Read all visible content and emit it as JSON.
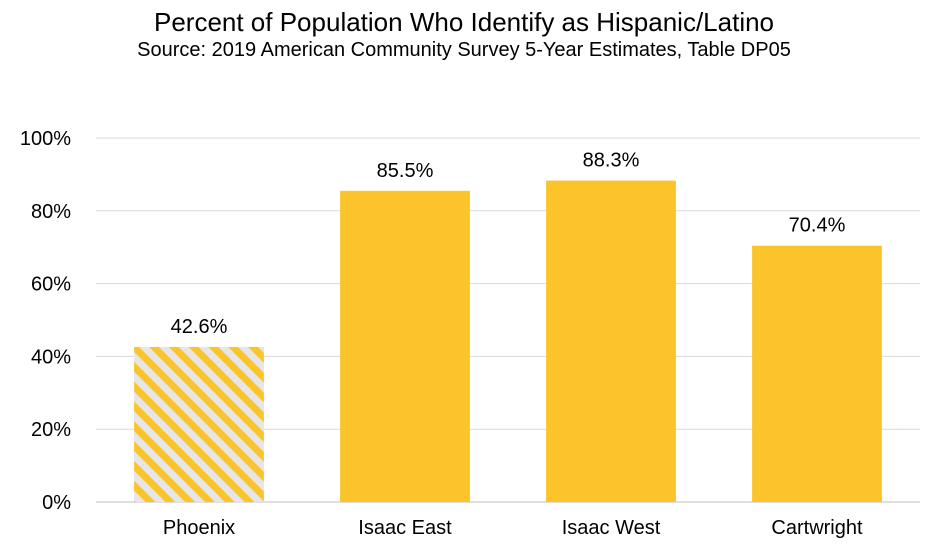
{
  "chart_data": {
    "type": "bar",
    "title": "Percent of Population Who Identify as Hispanic/Latino",
    "subtitle": "Source: 2019 American Community Survey 5-Year Estimates, Table DP05",
    "categories": [
      "Phoenix",
      "Isaac East",
      "Isaac West",
      "Cartwright"
    ],
    "values": [
      42.6,
      85.5,
      88.3,
      70.4
    ],
    "data_labels": [
      "42.6%",
      "85.5%",
      "88.3%",
      "70.4%"
    ],
    "ylim": [
      0,
      100
    ],
    "yticks": [
      0,
      20,
      40,
      60,
      80,
      100
    ],
    "ytick_labels": [
      "0%",
      "20%",
      "40%",
      "60%",
      "80%",
      "100%"
    ],
    "xlabel": "",
    "ylabel": "",
    "grid": true,
    "legend": "none",
    "colors": {
      "bar": "#FBC42A",
      "hatch_stripe": "#FBC42A",
      "hatch_background": "#E6E6E6",
      "grid": "#D9D9D9",
      "axis": "#BFBFBF"
    },
    "hatched_categories": [
      "Phoenix"
    ]
  }
}
